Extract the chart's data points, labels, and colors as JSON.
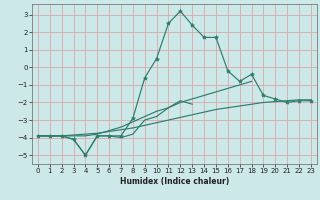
{
  "xlabel": "Humidex (Indice chaleur)",
  "x": [
    0,
    1,
    2,
    3,
    4,
    5,
    6,
    7,
    8,
    9,
    10,
    11,
    12,
    13,
    14,
    15,
    16,
    17,
    18,
    19,
    20,
    21,
    22,
    23
  ],
  "line1": [
    -3.9,
    -3.9,
    -3.9,
    -4.1,
    -5.0,
    -3.9,
    -3.9,
    -3.9,
    -2.9,
    -0.6,
    0.5,
    2.5,
    3.2,
    2.4,
    1.7,
    1.7,
    -0.2,
    -0.8,
    -0.4,
    -1.6,
    -1.8,
    -2.0,
    -1.9,
    -1.9
  ],
  "line2": [
    -3.9,
    -3.9,
    -3.9,
    -4.1,
    -5.0,
    -3.9,
    -3.9,
    -4.0,
    -3.8,
    -3.0,
    -2.8,
    -2.3,
    -1.9,
    -2.1,
    null,
    null,
    null,
    null,
    null,
    null,
    null,
    null,
    null,
    null
  ],
  "line3": [
    -3.9,
    -3.9,
    -3.9,
    -3.9,
    -3.9,
    -3.8,
    -3.6,
    -3.4,
    -3.1,
    -2.8,
    -2.5,
    -2.3,
    -2.0,
    -1.8,
    -1.6,
    -1.4,
    -1.2,
    -1.0,
    -0.8,
    null,
    null,
    null,
    null,
    null
  ],
  "line4": [
    -3.9,
    -3.9,
    -3.9,
    -3.85,
    -3.8,
    -3.75,
    -3.65,
    -3.55,
    -3.45,
    -3.3,
    -3.15,
    -3.0,
    -2.85,
    -2.7,
    -2.55,
    -2.4,
    -2.3,
    -2.2,
    -2.1,
    -2.0,
    -1.95,
    -1.9,
    -1.85,
    -1.85
  ],
  "line_color": "#2d7d6e",
  "bg_color": "#cde8e8",
  "grid_color": "#d8a8a8",
  "ylim": [
    -5.5,
    3.6
  ],
  "xlim": [
    -0.5,
    23.5
  ],
  "yticks": [
    -5,
    -4,
    -3,
    -2,
    -1,
    0,
    1,
    2,
    3
  ],
  "xticks": [
    0,
    1,
    2,
    3,
    4,
    5,
    6,
    7,
    8,
    9,
    10,
    11,
    12,
    13,
    14,
    15,
    16,
    17,
    18,
    19,
    20,
    21,
    22,
    23
  ]
}
